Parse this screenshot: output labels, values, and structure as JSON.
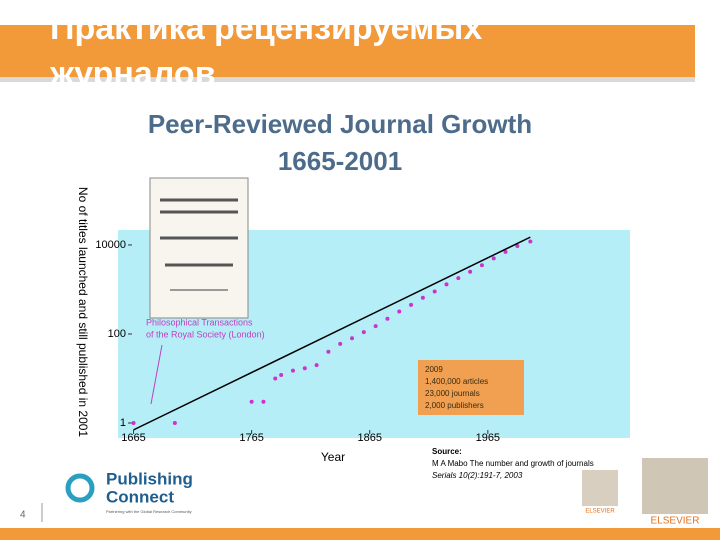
{
  "slide": {
    "title_lines": [
      "Практика рецензируемых",
      "журналов"
    ],
    "page_number": "4"
  },
  "chart_data": {
    "type": "scatter",
    "title": "Peer-Reviewed Journal Growth",
    "subtitle": "1665-2001",
    "x_label": "Year",
    "y_label": "No of titles launched and still published in 2001",
    "y_scale": "log",
    "grid": false,
    "xlim": [
      1662,
      2082
    ],
    "xticks": [
      1665,
      1765,
      1865,
      1965
    ],
    "ylim": [
      0.46,
      21700
    ],
    "yticks": [
      1,
      100,
      10000
    ],
    "series": [
      {
        "color": "#cc33cc",
        "style": "points",
        "x": [
          1665,
          1700,
          1765,
          1775,
          1785,
          1790,
          1800,
          1810,
          1820,
          1830,
          1840,
          1850,
          1860,
          1870,
          1880,
          1890,
          1900,
          1910,
          1920,
          1930,
          1940,
          1950,
          1960,
          1970,
          1980,
          1990,
          2001
        ],
        "values": [
          1,
          1,
          3,
          3,
          10,
          12,
          15,
          17,
          20,
          40,
          60,
          80,
          110,
          150,
          220,
          320,
          450,
          650,
          900,
          1300,
          1800,
          2500,
          3500,
          5000,
          7000,
          9500,
          12000
        ]
      },
      {
        "color": "#000000",
        "style": "line",
        "x": [
          1665,
          2001
        ],
        "values": [
          0.7,
          15000
        ]
      }
    ],
    "annotations": {
      "journal": [
        "Philosophical Transactions",
        "of the Royal Society (London)"
      ],
      "box": [
        "2009",
        "1,400,000 articles",
        "23,000 journals",
        "2,000 publishers"
      ],
      "source": [
        "Source:",
        "M A Mabo The number and growth of journals",
        "Serials 10(2):191-7, 2003"
      ]
    }
  },
  "logos": {
    "publishing": [
      "Publishing",
      "Connect"
    ],
    "tagline": "Partnering with the Global Research Community",
    "elsevier_small": "ELSEVIER",
    "elsevier": "ELSEVIER"
  }
}
